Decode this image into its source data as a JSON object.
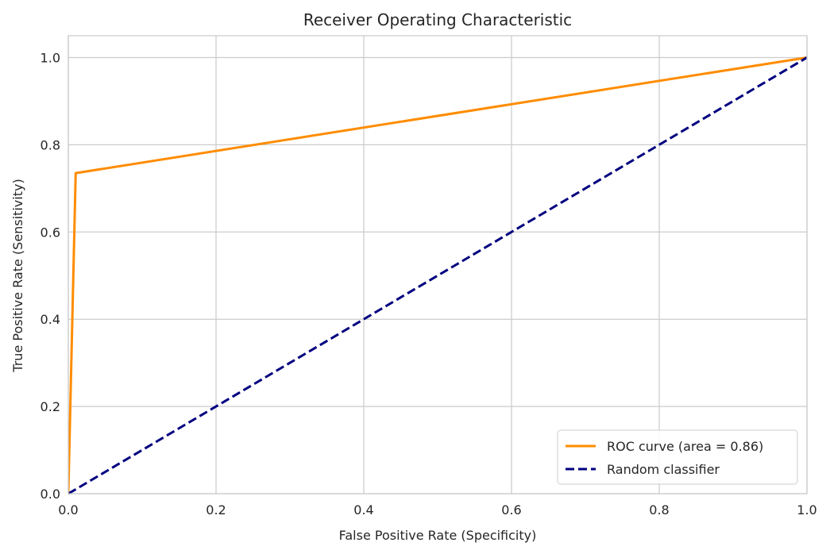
{
  "chart_data": {
    "type": "line",
    "title": "Receiver Operating Characteristic",
    "xlabel": "False Positive Rate (Specificity)",
    "ylabel": "True Positive Rate (Sensitivity)",
    "xlim": [
      0.0,
      1.0
    ],
    "ylim": [
      0.0,
      1.05
    ],
    "x_ticks": [
      0.0,
      0.2,
      0.4,
      0.6,
      0.8,
      1.0
    ],
    "y_ticks": [
      0.0,
      0.2,
      0.4,
      0.6,
      0.8,
      1.0
    ],
    "x_tick_labels": [
      "0.0",
      "0.2",
      "0.4",
      "0.6",
      "0.8",
      "1.0"
    ],
    "y_tick_labels": [
      "0.0",
      "0.2",
      "0.4",
      "0.6",
      "0.8",
      "1.0"
    ],
    "grid": true,
    "legend_position": "lower-right",
    "series": [
      {
        "name": "ROC curve (area = 0.86)",
        "color": "#ff8c00",
        "style": "solid",
        "x": [
          0.0,
          0.01,
          1.0
        ],
        "y": [
          0.0,
          0.735,
          1.0
        ]
      },
      {
        "name": "Random classifier",
        "color": "#000080",
        "style": "dashed",
        "x": [
          0.0,
          1.0
        ],
        "y": [
          0.0,
          1.0
        ]
      }
    ]
  }
}
